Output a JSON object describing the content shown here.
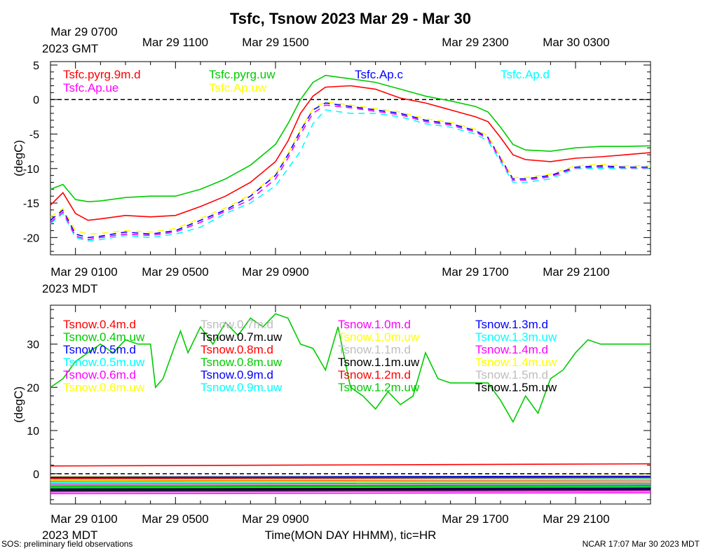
{
  "title": "Tsfc, Tsnow 2023 Mar 29 - Mar 30",
  "footer_left": "SOS: preliminary field observations",
  "footer_right": "NCAR 17:07 Mar 30 2023 MDT",
  "xlabel": "Time(MON DAY HHMM), tic=HR",
  "tz_gmt": "2023 GMT",
  "tz_mdt": "2023 MDT",
  "gmt_ticks": [
    "Mar 29 0700",
    "Mar 29 1100",
    "Mar 29 1500",
    "Mar 29 2300",
    "Mar 30 0300"
  ],
  "mdt_ticks": [
    "Mar 29 0100",
    "Mar 29 0500",
    "Mar 29 0900",
    "Mar 29 1700",
    "Mar 29 2100"
  ],
  "colors": {
    "red": "#ff0000",
    "green": "#00cc00",
    "blue": "#0000ff",
    "cyan": "#00ffff",
    "magenta": "#ff00ff",
    "yellow": "#ffff00",
    "gray": "#bebebe",
    "black": "#000000"
  },
  "chart_data": [
    {
      "type": "line",
      "ylabel": "(degC)",
      "x_unit": "hours after Mar 29 0000 MDT",
      "xlim": [
        0,
        24
      ],
      "ylim": [
        -22.5,
        5.5
      ],
      "yticks": [
        5,
        0,
        -5,
        -10,
        -15,
        -20
      ],
      "reference_line": 0,
      "series": [
        {
          "name": "Tsfc.pyrg.9m.d",
          "color": "red",
          "style": "solid",
          "x": [
            0,
            0.5,
            1,
            1.5,
            2,
            3,
            4,
            5,
            6,
            7,
            8,
            9,
            9.5,
            10,
            10.5,
            11,
            12,
            13,
            14,
            15,
            16,
            17,
            17.5,
            18,
            18.5,
            19,
            20,
            21,
            22,
            23,
            24
          ],
          "y": [
            -15.3,
            -13.5,
            -16.5,
            -17.5,
            -17.3,
            -16.8,
            -17.0,
            -16.8,
            -15.5,
            -14.0,
            -12.0,
            -9.0,
            -6.0,
            -2.0,
            0.5,
            1.8,
            2.0,
            1.5,
            0.2,
            -0.5,
            -1.5,
            -2.5,
            -3.2,
            -5.5,
            -8.0,
            -8.7,
            -9.0,
            -8.5,
            -8.3,
            -8.0,
            -7.7
          ]
        },
        {
          "name": "Tsfc.pyrg.uw",
          "color": "green",
          "style": "solid",
          "x": [
            0,
            0.5,
            1,
            1.5,
            2,
            3,
            4,
            5,
            6,
            7,
            8,
            9,
            9.5,
            10,
            10.5,
            11,
            12,
            13,
            14,
            15,
            16,
            17,
            17.5,
            18,
            18.5,
            19,
            20,
            21,
            22,
            23,
            24
          ],
          "y": [
            -13.0,
            -12.3,
            -14.5,
            -14.8,
            -14.7,
            -14.2,
            -14.0,
            -14.0,
            -13.0,
            -11.5,
            -9.5,
            -6.5,
            -3.5,
            0.0,
            2.5,
            3.5,
            3.0,
            2.5,
            1.5,
            0.5,
            -0.2,
            -1.0,
            -1.8,
            -4.0,
            -6.5,
            -7.3,
            -7.5,
            -7.0,
            -6.8,
            -6.8,
            -6.7
          ]
        },
        {
          "name": "Tsfc.Ap.c",
          "color": "blue",
          "style": "dashed",
          "x": [
            0,
            0.5,
            1,
            1.5,
            2,
            3,
            4,
            5,
            6,
            7,
            8,
            9,
            9.5,
            10,
            10.5,
            11,
            12,
            13,
            14,
            15,
            16,
            17,
            17.5,
            18,
            18.5,
            19,
            20,
            21,
            22,
            23,
            24
          ],
          "y": [
            -17.5,
            -16.0,
            -19.5,
            -20.0,
            -19.8,
            -19.2,
            -19.5,
            -19.0,
            -17.5,
            -16.0,
            -14.0,
            -11.0,
            -8.0,
            -4.5,
            -1.5,
            -0.5,
            -1.0,
            -1.5,
            -2.0,
            -3.0,
            -3.5,
            -4.5,
            -5.5,
            -8.5,
            -11.5,
            -11.5,
            -11.0,
            -9.8,
            -9.6,
            -9.8,
            -9.8
          ]
        },
        {
          "name": "Tsfc.Ap.d",
          "color": "cyan",
          "style": "dashed",
          "x": [
            0,
            0.5,
            1,
            1.5,
            2,
            3,
            4,
            5,
            6,
            7,
            8,
            9,
            9.5,
            10,
            10.5,
            11,
            12,
            13,
            14,
            15,
            16,
            17,
            17.5,
            18,
            18.5,
            19,
            20,
            21,
            22,
            23,
            24
          ],
          "y": [
            -18.0,
            -16.5,
            -20.0,
            -20.5,
            -20.3,
            -19.7,
            -20.0,
            -19.5,
            -18.5,
            -16.5,
            -15.0,
            -12.5,
            -10.0,
            -7.5,
            -3.5,
            -1.5,
            -2.0,
            -2.0,
            -2.5,
            -3.5,
            -4.0,
            -5.0,
            -6.0,
            -9.0,
            -12.0,
            -12.0,
            -11.5,
            -10.0,
            -10.0,
            -10.0,
            -10.0
          ]
        },
        {
          "name": "Tsfc.Ap.ue",
          "color": "magenta",
          "style": "dashed",
          "x": [
            0,
            0.5,
            1,
            1.5,
            2,
            3,
            4,
            5,
            6,
            7,
            8,
            9,
            9.5,
            10,
            10.5,
            11,
            12,
            13,
            14,
            15,
            16,
            17,
            17.5,
            18,
            18.5,
            19,
            20,
            21,
            22,
            23,
            24
          ],
          "y": [
            -17.8,
            -16.3,
            -19.8,
            -20.3,
            -20.0,
            -19.5,
            -19.7,
            -19.2,
            -17.8,
            -16.2,
            -14.5,
            -11.5,
            -8.5,
            -5.0,
            -2.0,
            -0.8,
            -1.2,
            -1.7,
            -2.2,
            -3.2,
            -3.7,
            -4.7,
            -5.7,
            -8.7,
            -11.7,
            -11.7,
            -11.2,
            -9.9,
            -9.8,
            -9.9,
            -9.9
          ]
        },
        {
          "name": "Tsfc.Ap.uw",
          "color": "yellow",
          "style": "dashed",
          "x": [
            0,
            0.5,
            1,
            1.5,
            2,
            3,
            4,
            5,
            6,
            7,
            8,
            9,
            9.5,
            10,
            10.5,
            11,
            12,
            13,
            14,
            15,
            16,
            17,
            17.5,
            18,
            18.5,
            19,
            20,
            21,
            22,
            23,
            24
          ],
          "y": [
            -17.0,
            -15.8,
            -19.0,
            -19.5,
            -19.4,
            -19.0,
            -19.2,
            -18.7,
            -17.2,
            -15.7,
            -13.8,
            -10.8,
            -7.8,
            -4.3,
            -1.3,
            -0.3,
            -0.8,
            -1.3,
            -1.8,
            -2.8,
            -3.3,
            -4.3,
            -5.3,
            -8.3,
            -11.3,
            -11.3,
            -10.8,
            -9.6,
            -9.4,
            -9.6,
            -9.6
          ]
        }
      ]
    },
    {
      "type": "line",
      "ylabel": "(degC)",
      "x_unit": "hours after Mar 29 0000 MDT",
      "xlim": [
        0,
        24
      ],
      "ylim": [
        -7,
        39
      ],
      "yticks": [
        30,
        20,
        10,
        0
      ],
      "reference_line": 0,
      "series": [
        {
          "name": "Tsnow.0.4m.d",
          "color": "red",
          "style": "solid",
          "x": [
            0,
            24
          ],
          "y": [
            1.8,
            2.3
          ]
        },
        {
          "name": "Tsnow.0.4m.uw",
          "color": "green",
          "style": "solid",
          "x": [
            0,
            0.5,
            1,
            1.5,
            2,
            2.5,
            3,
            3.5,
            4,
            4.2,
            4.5,
            5,
            5.2,
            5.5,
            6,
            6.5,
            7,
            7.5,
            8,
            8.5,
            9,
            9.5,
            10,
            10.5,
            11,
            11.5,
            12,
            12.5,
            13,
            13.5,
            14,
            14.5,
            15,
            15.5,
            16,
            16.5,
            17,
            17.5,
            18,
            18.5,
            19,
            19.5,
            20,
            20.5,
            21,
            21.5,
            22,
            22.5,
            23,
            23.5,
            24
          ],
          "y": [
            20,
            22,
            26,
            28,
            30,
            28,
            31,
            30,
            30,
            20,
            22,
            30,
            33,
            28,
            34,
            30,
            35,
            32,
            36,
            34,
            37,
            36,
            30,
            29,
            24,
            34,
            20,
            18,
            15,
            19,
            16,
            18,
            28,
            22,
            21,
            21,
            21,
            21,
            17,
            12,
            18,
            14,
            22,
            24,
            28,
            31,
            30,
            30,
            30,
            30,
            30
          ]
        },
        {
          "name": "Tsnow.0.5m.d",
          "color": "blue",
          "style": "solid",
          "x": [
            0,
            24
          ],
          "y": [
            -2.7,
            -2.5
          ]
        },
        {
          "name": "Tsnow.0.5m.uw",
          "color": "cyan",
          "style": "solid",
          "x": [
            0,
            24
          ],
          "y": [
            -3.3,
            -3.1
          ]
        },
        {
          "name": "Tsnow.0.6m.d",
          "color": "magenta",
          "style": "solid",
          "x": [
            0,
            24
          ],
          "y": [
            -4.6,
            -4.4
          ]
        },
        {
          "name": "Tsnow.0.6m.uw",
          "color": "yellow",
          "style": "solid",
          "x": [
            0,
            24
          ],
          "y": [
            -2.2,
            -2.0
          ]
        },
        {
          "name": "Tsnow.0.7m.d",
          "color": "gray",
          "style": "solid",
          "x": [
            0,
            24
          ],
          "y": [
            -4.0,
            -3.8
          ]
        },
        {
          "name": "Tsnow.0.7m.uw",
          "color": "black",
          "style": "solid",
          "x": [
            0,
            24
          ],
          "y": [
            -1.0,
            -0.8
          ]
        },
        {
          "name": "Tsnow.0.8m.d",
          "color": "red",
          "style": "solid",
          "x": [
            0,
            24
          ],
          "y": [
            -1.6,
            -1.4
          ]
        },
        {
          "name": "Tsnow.0.8m.uw",
          "color": "green",
          "style": "solid",
          "x": [
            0,
            24
          ],
          "y": [
            -2.9,
            -2.7
          ]
        },
        {
          "name": "Tsnow.0.9m.d",
          "color": "blue",
          "style": "solid",
          "x": [
            0,
            24
          ],
          "y": [
            -3.7,
            -3.5
          ]
        },
        {
          "name": "Tsnow.0.9m.uw",
          "color": "cyan",
          "style": "solid",
          "x": [
            0,
            24
          ],
          "y": [
            -1.3,
            -1.1
          ]
        },
        {
          "name": "Tsnow.1.0m.d",
          "color": "magenta",
          "style": "solid",
          "x": [
            0,
            24
          ],
          "y": [
            -2.4,
            -2.2
          ]
        },
        {
          "name": "Tsnow.1.0m.uw",
          "color": "yellow",
          "style": "solid",
          "x": [
            0,
            24
          ],
          "y": [
            -0.6,
            -0.4
          ]
        },
        {
          "name": "Tsnow.1.1m.d",
          "color": "gray",
          "style": "solid",
          "x": [
            0,
            24
          ],
          "y": [
            -1.9,
            -1.7
          ]
        },
        {
          "name": "Tsnow.1.1m.uw",
          "color": "black",
          "style": "solid",
          "x": [
            0,
            24
          ],
          "y": [
            -3.5,
            -3.3
          ]
        },
        {
          "name": "Tsnow.1.2m.d",
          "color": "red",
          "style": "solid",
          "x": [
            0,
            24
          ],
          "y": [
            -1.1,
            -0.9
          ]
        },
        {
          "name": "Tsnow.1.2m.uw",
          "color": "green",
          "style": "solid",
          "x": [
            0,
            24
          ],
          "y": [
            -3.1,
            -2.9
          ]
        },
        {
          "name": "Tsnow.1.3m.d",
          "color": "blue",
          "style": "solid",
          "x": [
            0,
            24
          ],
          "y": [
            -0.8,
            -0.6
          ]
        },
        {
          "name": "Tsnow.1.3m.uw",
          "color": "cyan",
          "style": "solid",
          "x": [
            0,
            24
          ],
          "y": [
            -2.0,
            -1.8
          ]
        },
        {
          "name": "Tsnow.1.4m.d",
          "color": "magenta",
          "style": "solid",
          "x": [
            0,
            24
          ],
          "y": [
            -4.2,
            -4.0
          ]
        },
        {
          "name": "Tsnow.1.4m.uw",
          "color": "yellow",
          "style": "solid",
          "x": [
            0,
            24
          ],
          "y": [
            -1.5,
            -1.3
          ]
        },
        {
          "name": "Tsnow.1.5m.d",
          "color": "gray",
          "style": "solid",
          "x": [
            0,
            24
          ],
          "y": [
            -2.6,
            -2.4
          ]
        },
        {
          "name": "Tsnow.1.5m.uw",
          "color": "black",
          "style": "solid",
          "x": [
            0,
            24
          ],
          "y": [
            -3.9,
            -3.7
          ]
        }
      ]
    }
  ]
}
